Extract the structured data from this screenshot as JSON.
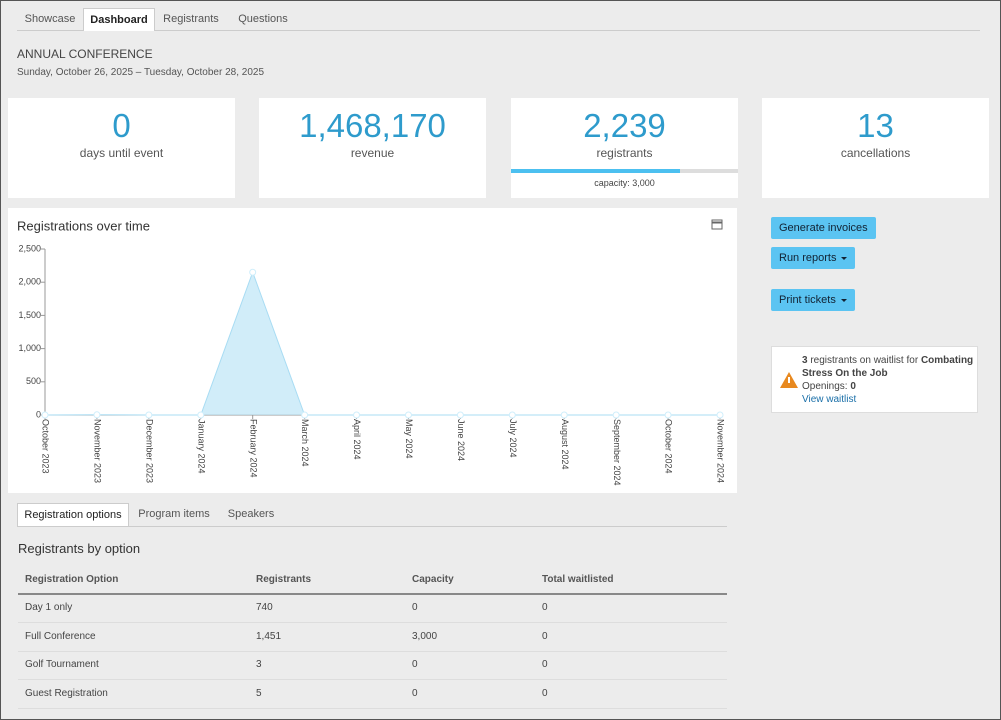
{
  "tabs": [
    "Showcase",
    "Dashboard",
    "Registrants",
    "Questions"
  ],
  "active_tab": "Dashboard",
  "header": {
    "title": "ANNUAL CONFERENCE",
    "dates": "Sunday, October 26, 2025 – Tuesday, October 28, 2025"
  },
  "stats": [
    {
      "value": "0",
      "label": "days until event"
    },
    {
      "value": "1,468,170",
      "label": "revenue"
    },
    {
      "value": {
        "value": 2239,
        "label": "2,239"
      },
      "label": "registrants",
      "capacity_prefix": "capacity:",
      "capacity": {
        "value": 3000,
        "label": "3,000"
      }
    },
    {
      "value": "13",
      "label": "cancellations"
    }
  ],
  "chart_data": {
    "type": "area",
    "title": "Registrations over time",
    "categories": [
      "October 2023",
      "November 2023",
      "December 2023",
      "January 2024",
      "February 2024",
      "March 2024",
      "April 2024",
      "May 2024",
      "June 2024",
      "July 2024",
      "August 2024",
      "September 2024",
      "October 2024",
      "November 2024"
    ],
    "values": [
      0,
      3,
      0,
      0,
      2150,
      0,
      0,
      0,
      0,
      0,
      0,
      0,
      0,
      0
    ],
    "color": "#bde6f7",
    "ylim": [
      0,
      2500
    ],
    "yticks": [
      0,
      500,
      {
        "value": 1000,
        "label": "1,000"
      },
      {
        "value": 1500,
        "label": "1,500"
      },
      {
        "value": 2000,
        "label": "2,000"
      },
      {
        "value": 2500,
        "label": "2,500"
      }
    ],
    "grid": false
  },
  "actions": [
    "Generate invoices",
    "Run reports",
    "Print tickets"
  ],
  "waitlist": {
    "count": "3",
    "text": "registrants on waitlist for",
    "item": "Combating Stress On the Job",
    "openings_label": "Openings:",
    "openings": "0",
    "link": "View waitlist"
  },
  "sub_tabs": [
    "Registration options",
    "Program items",
    "Speakers"
  ],
  "table": {
    "title": "Registrants by option",
    "columns": [
      "Registration Option",
      "Registrants",
      "Capacity",
      "Total waitlisted"
    ],
    "rows": [
      [
        "Day 1 only",
        "740",
        "0",
        "0"
      ],
      [
        "Full Conference",
        "1,451",
        "3,000",
        "0"
      ],
      [
        "Golf Tournament",
        "3",
        "0",
        "0"
      ],
      [
        "Guest Registration",
        "5",
        "0",
        "0"
      ]
    ]
  }
}
